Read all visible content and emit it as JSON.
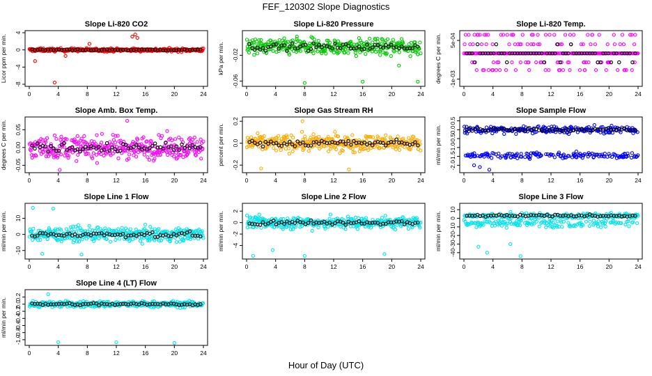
{
  "title": "FEF_120302  Slope Diagnostics",
  "xlabel": "Hour of Day (UTC)",
  "chart_data": [
    {
      "type": "scatter",
      "title": "Slope Li-820 CO2",
      "ylabel": "Licor ppm per min.",
      "xlim": [
        0,
        24
      ],
      "ylim": [
        -8,
        4
      ],
      "yticks": [
        "-8",
        "-4",
        "0",
        "4"
      ],
      "yticks_values": [
        -8,
        -4,
        0,
        4
      ],
      "xticks": [
        0,
        4,
        8,
        12,
        16,
        20,
        24
      ],
      "color": "#ff0000",
      "center": 0.0,
      "spread": 0.35,
      "outliers": [
        {
          "x": 0.8,
          "y": -2.6
        },
        {
          "x": 3.5,
          "y": -7.6
        },
        {
          "x": 14.2,
          "y": 3.1
        },
        {
          "x": 14.6,
          "y": 3.6
        },
        {
          "x": 14.9,
          "y": 2.8
        },
        {
          "x": 5.0,
          "y": -1.4
        },
        {
          "x": 8.3,
          "y": 1.4
        }
      ]
    },
    {
      "type": "scatter",
      "title": "Slope Li-820 Pressure",
      "ylabel": "kPa per min.",
      "xlim": [
        0,
        24
      ],
      "ylim": [
        -0.065,
        0.015
      ],
      "yticks": [
        "-0.06",
        "-0.02"
      ],
      "yticks_values": [
        -0.06,
        -0.02
      ],
      "xticks": [
        0,
        4,
        8,
        12,
        16,
        20,
        24
      ],
      "color": "#00cc00",
      "center": -0.007,
      "spread": 0.012,
      "outliers": [
        {
          "x": 8.0,
          "y": -0.063
        },
        {
          "x": 16.0,
          "y": -0.061
        },
        {
          "x": 23.6,
          "y": -0.061
        },
        {
          "x": 21.0,
          "y": -0.036
        }
      ]
    },
    {
      "type": "scatter",
      "title": "Slope Li-820 Temp.",
      "ylabel": "degrees C per min.",
      "xlim": [
        0,
        24
      ],
      "ylim": [
        -0.0012,
        0.0008
      ],
      "yticks": [
        "-1e-03",
        "5e-04"
      ],
      "yticks_values": [
        -0.001,
        0.0005
      ],
      "xticks": [
        0,
        4,
        8,
        12,
        16,
        20,
        24
      ],
      "color": "#ff00ff",
      "center": 0.0,
      "spread": 0.0,
      "levels": [
        0.0,
        0.00035,
        -0.00035,
        -0.00065,
        0.00072
      ],
      "outliers": []
    },
    {
      "type": "scatter",
      "title": "Slope Amb. Box Temp.",
      "ylabel": "degrees C per min.",
      "xlim": [
        0,
        24
      ],
      "ylim": [
        -0.065,
        0.08
      ],
      "yticks": [
        "-0.05",
        "0.00",
        "0.05"
      ],
      "yticks_values": [
        -0.05,
        0.0,
        0.05
      ],
      "xticks": [
        0,
        4,
        8,
        12,
        16,
        20,
        24
      ],
      "color": "#ff00ff",
      "center": 0.0,
      "spread": 0.03,
      "outliers": [
        {
          "x": 4.2,
          "y": -0.063
        },
        {
          "x": 13.5,
          "y": 0.075
        }
      ]
    },
    {
      "type": "scatter",
      "title": "Slope Gas Stream RH",
      "ylabel": "percent per min.",
      "xlim": [
        0,
        24
      ],
      "ylim": [
        -0.25,
        0.22
      ],
      "yticks": [
        "-0.2",
        "0.0",
        "0.2"
      ],
      "yticks_values": [
        -0.2,
        0.0,
        0.2
      ],
      "xticks": [
        0,
        4,
        8,
        12,
        16,
        20,
        24
      ],
      "color": "#ffaa00",
      "center": 0.0,
      "spread": 0.07,
      "outliers": [
        {
          "x": 2.0,
          "y": -0.23
        },
        {
          "x": 7.7,
          "y": 0.2
        },
        {
          "x": 14.1,
          "y": -0.24
        }
      ]
    },
    {
      "type": "scatter",
      "title": "Slope Sample Flow",
      "ylabel": "ml/min per min.",
      "xlim": [
        0,
        24
      ],
      "ylim": [
        -2.3,
        0.6
      ],
      "yticks": [
        "-2.0",
        "-1.5",
        "-1.0",
        "-0.5",
        "0.0",
        "0.5"
      ],
      "yticks_values": [
        -2.0,
        -1.5,
        -1.0,
        -0.5,
        0.0,
        0.5
      ],
      "xticks": [
        0,
        4,
        8,
        12,
        16,
        20,
        24
      ],
      "color": "#0000ff",
      "center": 0.0,
      "spread": 0.2,
      "band2": {
        "center": -1.45,
        "spread": 0.15
      },
      "outliers": [
        {
          "x": 3.5,
          "y": -2.25
        },
        {
          "x": 1.4,
          "y": -2.0
        },
        {
          "x": 2.2,
          "y": -2.1
        }
      ]
    },
    {
      "type": "scatter",
      "title": "Slope Line 1 Flow",
      "ylabel": "ml/min per min.",
      "xlim": [
        0,
        24
      ],
      "ylim": [
        -14,
        18
      ],
      "yticks": [
        "-10",
        "0",
        "10"
      ],
      "yticks_values": [
        -10,
        0,
        10
      ],
      "xticks": [
        0,
        4,
        8,
        12,
        16,
        20,
        24
      ],
      "color": "#00e5ee",
      "center": 0.0,
      "spread": 4.0,
      "outliers": [
        {
          "x": 0.5,
          "y": 16.5
        },
        {
          "x": 3.3,
          "y": 16.0
        },
        {
          "x": 1.8,
          "y": -12.0
        },
        {
          "x": 7.2,
          "y": -12.5
        }
      ]
    },
    {
      "type": "scatter",
      "title": "Slope Line 2 Flow",
      "ylabel": "ml/min per min.",
      "xlim": [
        0,
        24
      ],
      "ylim": [
        -6,
        3
      ],
      "yticks": [
        "-4",
        "-2",
        "0",
        "2"
      ],
      "yticks_values": [
        -4,
        -2,
        0,
        2
      ],
      "xticks": [
        0,
        4,
        8,
        12,
        16,
        20,
        24
      ],
      "color": "#00e5ee",
      "center": 0.0,
      "spread": 1.0,
      "outliers": [
        {
          "x": 0.9,
          "y": -5.8
        },
        {
          "x": 8.0,
          "y": -5.8
        },
        {
          "x": 19.0,
          "y": -5.5
        },
        {
          "x": 3.6,
          "y": -4.8
        }
      ]
    },
    {
      "type": "scatter",
      "title": "Slope Line 3 Flow",
      "ylabel": "ml/min per min.",
      "xlim": [
        0,
        24
      ],
      "ylim": [
        -45,
        15
      ],
      "yticks": [
        "-40",
        "-30",
        "-20",
        "-10",
        "0",
        "10"
      ],
      "yticks_values": [
        -40,
        -30,
        -20,
        -10,
        0,
        10
      ],
      "xticks": [
        0,
        4,
        8,
        12,
        16,
        20,
        24
      ],
      "color": "#00e5ee",
      "center": 3.0,
      "spread": 3.0,
      "band2": {
        "center": -6.0,
        "spread": 4.0
      },
      "outliers": [
        {
          "x": 2.0,
          "y": -33
        },
        {
          "x": 3.2,
          "y": -40
        },
        {
          "x": 7.8,
          "y": -44
        },
        {
          "x": 6.4,
          "y": -30
        }
      ]
    },
    {
      "type": "scatter",
      "title": "Slope Line 4 (LT) Flow",
      "ylabel": "ml/min per min.",
      "xlim": [
        0,
        24
      ],
      "ylim": [
        -1.1,
        0.35
      ],
      "yticks": [
        "-1.0",
        "-0.8",
        "-0.6",
        "-0.4",
        "-0.2",
        "0.0",
        "0.2"
      ],
      "yticks_values": [
        -1.0,
        -0.8,
        -0.6,
        -0.4,
        -0.2,
        0.0,
        0.2
      ],
      "xticks": [
        0,
        4,
        8,
        12,
        16,
        20,
        24
      ],
      "color": "#00e5ee",
      "center": 0.0,
      "spread": 0.08,
      "outliers": [
        {
          "x": 4.0,
          "y": -1.07
        },
        {
          "x": 12.0,
          "y": -1.07
        },
        {
          "x": 20.0,
          "y": -1.09
        },
        {
          "x": 2.6,
          "y": 0.28
        }
      ]
    }
  ]
}
